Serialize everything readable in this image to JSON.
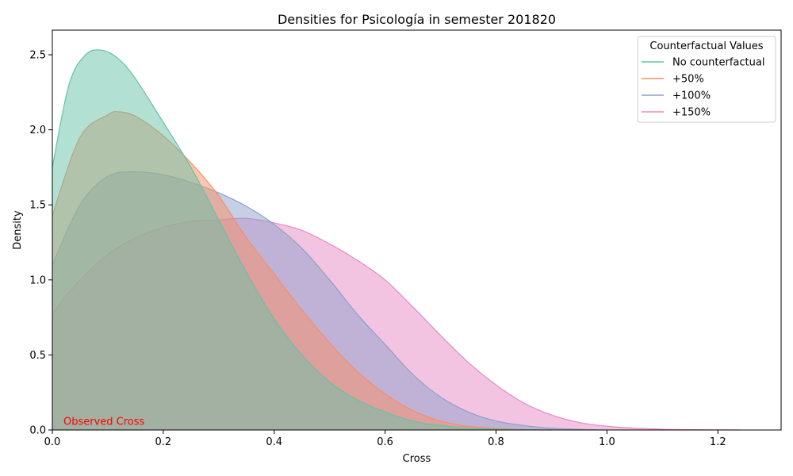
{
  "chart_data": {
    "type": "area",
    "title": "Densities for Psicología in semester 201820",
    "xlabel": "Cross",
    "ylabel": "Density",
    "xlim": [
      0,
      1.314
    ],
    "ylim": [
      0,
      2.664
    ],
    "xticks": [
      0.0,
      0.2,
      0.4,
      0.6,
      0.8,
      1.0,
      1.2
    ],
    "xtick_labels": [
      "0.0",
      "0.2",
      "0.4",
      "0.6",
      "0.8",
      "1.0",
      "1.2"
    ],
    "yticks": [
      0.0,
      0.5,
      1.0,
      1.5,
      2.0,
      2.5
    ],
    "ytick_labels": [
      "0.0",
      "0.5",
      "1.0",
      "1.5",
      "2.0",
      "2.5"
    ],
    "grid": false,
    "legend": {
      "title": "Counterfactual Values",
      "placement": "top-right"
    },
    "annotation": {
      "text": "Observed Cross",
      "x": 0.02,
      "y": 0.035,
      "color": "#ff0000"
    },
    "series": [
      {
        "name": "+150%",
        "color": "#e78ac3",
        "x": [
          0.0,
          0.05,
          0.1,
          0.15,
          0.2,
          0.25,
          0.3,
          0.35,
          0.4,
          0.45,
          0.5,
          0.55,
          0.6,
          0.65,
          0.7,
          0.75,
          0.8,
          0.85,
          0.9,
          0.95,
          1.0,
          1.05,
          1.1,
          1.15,
          1.2,
          1.24
        ],
        "y": [
          0.78,
          1.0,
          1.17,
          1.28,
          1.35,
          1.39,
          1.4,
          1.41,
          1.38,
          1.33,
          1.24,
          1.13,
          1.0,
          0.82,
          0.63,
          0.45,
          0.3,
          0.18,
          0.1,
          0.05,
          0.025,
          0.012,
          0.005,
          0.002,
          0.001,
          0.0
        ]
      },
      {
        "name": "+100%",
        "color": "#8da0cb",
        "x": [
          0.0,
          0.05,
          0.1,
          0.15,
          0.2,
          0.25,
          0.3,
          0.35,
          0.4,
          0.45,
          0.5,
          0.55,
          0.6,
          0.65,
          0.7,
          0.75,
          0.8,
          0.85,
          0.9,
          0.95,
          1.0
        ],
        "y": [
          1.1,
          1.5,
          1.69,
          1.72,
          1.7,
          1.65,
          1.58,
          1.49,
          1.37,
          1.21,
          1.0,
          0.77,
          0.57,
          0.37,
          0.22,
          0.12,
          0.06,
          0.03,
          0.012,
          0.004,
          0.0
        ]
      },
      {
        "name": "+50%",
        "color": "#fc8d62",
        "x": [
          0.0,
          0.05,
          0.1,
          0.12,
          0.15,
          0.2,
          0.25,
          0.3,
          0.35,
          0.4,
          0.45,
          0.5,
          0.55,
          0.6,
          0.65,
          0.7,
          0.75,
          0.8,
          0.85,
          0.9
        ],
        "y": [
          1.43,
          1.95,
          2.1,
          2.12,
          2.09,
          1.96,
          1.78,
          1.56,
          1.28,
          1.04,
          0.8,
          0.58,
          0.39,
          0.24,
          0.13,
          0.06,
          0.025,
          0.01,
          0.003,
          0.0
        ]
      },
      {
        "name": "No counterfactual",
        "color": "#66c2a5",
        "x": [
          0.0,
          0.03,
          0.06,
          0.09,
          0.12,
          0.15,
          0.2,
          0.25,
          0.3,
          0.35,
          0.4,
          0.45,
          0.5,
          0.55,
          0.6,
          0.65,
          0.7,
          0.75,
          0.8,
          0.85,
          0.9
        ],
        "y": [
          1.75,
          2.3,
          2.5,
          2.53,
          2.47,
          2.34,
          2.05,
          1.75,
          1.4,
          1.05,
          0.74,
          0.5,
          0.32,
          0.2,
          0.12,
          0.06,
          0.03,
          0.013,
          0.005,
          0.002,
          0.0
        ]
      }
    ],
    "legend_order": [
      "No counterfactual",
      "+50%",
      "+100%",
      "+150%"
    ]
  }
}
